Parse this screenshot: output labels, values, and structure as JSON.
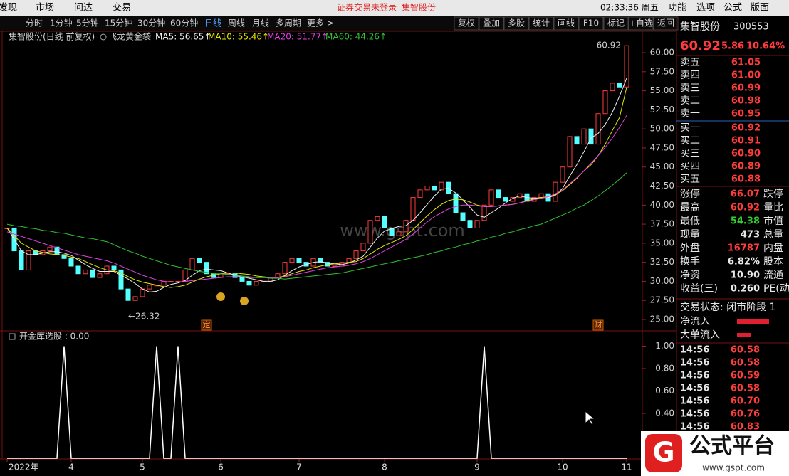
{
  "menu": {
    "left": [
      "发现",
      "市场",
      "问达",
      "交易"
    ],
    "notice": "证券交易未登录",
    "stock": "集智股份",
    "clock": "02:33:36 周五",
    "right": [
      "功能",
      "选项",
      "公式",
      "版面"
    ]
  },
  "toolbar": {
    "periods": [
      "分时",
      "1分钟",
      "5分钟",
      "15分钟",
      "30分钟",
      "60分钟",
      "日线",
      "周线",
      "月线",
      "多周期",
      "更多 >"
    ],
    "active": 6,
    "tools": [
      "复权",
      "叠加",
      "多股",
      "统计",
      "画线",
      "F10",
      "标记",
      "+自选",
      "返回"
    ]
  },
  "chart_data": [
    {
      "type": "candlestick",
      "title": "集智股份(日线 前复权)",
      "indicator": "飞龙黄金袋",
      "up_color": "#ff3c3c",
      "down_color": "#54ffff",
      "close": [
        37,
        34,
        31.5,
        34,
        33.5,
        34,
        34.5,
        33.5,
        33,
        32,
        31,
        31.5,
        30.5,
        31,
        32,
        31.5,
        29,
        27.5,
        28,
        29,
        29.5,
        29.5,
        30,
        30,
        30,
        31.5,
        33,
        32.5,
        31,
        30.5,
        31,
        31,
        30.5,
        30,
        29.5,
        30,
        30,
        30.5,
        31,
        32.5,
        33,
        32.5,
        32,
        33,
        32.5,
        32,
        32,
        32.5,
        33,
        34,
        35,
        38,
        38.5,
        37,
        36,
        36.5,
        38,
        41,
        42,
        42.5,
        42,
        43,
        41.5,
        39,
        38,
        37,
        38,
        40,
        42,
        41,
        40.5,
        41,
        41.5,
        40.5,
        41,
        41.5,
        40.5,
        43,
        45,
        49,
        48,
        50,
        48,
        52,
        55,
        56,
        55.5,
        60.92
      ],
      "series": [
        {
          "name": "MA5: 56.65↑",
          "color": "#f0f0f0",
          "values": [
            37,
            35.5,
            34,
            33.5,
            33.5,
            33.7,
            33.9,
            33.9,
            33.7,
            33.4,
            32.8,
            32.2,
            31.7,
            31.3,
            31.3,
            31.3,
            30.8,
            30.3,
            29.7,
            29.0,
            28.6,
            28.7,
            29.2,
            29.6,
            29.8,
            30.1,
            30.8,
            31.4,
            31.6,
            31.5,
            31.4,
            31.1,
            30.8,
            30.6,
            30.4,
            30.2,
            30.0,
            30.0,
            30.2,
            30.8,
            31.4,
            31.9,
            32.2,
            32.5,
            32.6,
            32.4,
            32.3,
            32.2,
            32.4,
            32.8,
            33.3,
            34.5,
            35.7,
            36.6,
            36.9,
            37.2,
            37.3,
            38,
            39,
            40.1,
            41.2,
            42.1,
            42.2,
            41.6,
            40.7,
            39.7,
            38.7,
            38.4,
            39,
            39.6,
            40.3,
            40.9,
            41.2,
            41,
            40.9,
            41,
            41,
            41.3,
            42.2,
            43.8,
            45.3,
            47,
            48.8,
            49.4,
            50.6,
            52.2,
            54.3,
            56.65
          ]
        },
        {
          "name": "MA10: 55.46↑",
          "color": "#e6e600",
          "values": [
            37,
            36,
            35,
            34.5,
            34,
            33.8,
            33.6,
            33.5,
            33.4,
            33.2,
            33,
            32.6,
            32.2,
            31.8,
            31.5,
            31.4,
            31.1,
            30.6,
            30.2,
            29.9,
            29.7,
            29.5,
            29.3,
            29.2,
            29.3,
            29.5,
            29.9,
            30.3,
            30.6,
            30.8,
            31,
            31.1,
            31.1,
            31,
            30.9,
            30.7,
            30.6,
            30.5,
            30.5,
            30.7,
            31,
            31.3,
            31.5,
            31.8,
            32,
            32.2,
            32.3,
            32.4,
            32.5,
            32.6,
            33,
            33.6,
            34.2,
            34.7,
            35.1,
            35.5,
            36,
            36.8,
            37.7,
            38.6,
            39.4,
            40.1,
            40.6,
            40.8,
            40.7,
            40.4,
            40,
            39.8,
            39.8,
            39.9,
            40,
            40.1,
            40.3,
            40.6,
            40.8,
            41,
            41.1,
            41.4,
            41.9,
            42.7,
            43.5,
            44.5,
            45.3,
            46.5,
            48,
            49.8,
            51.5,
            55.46
          ]
        },
        {
          "name": "MA20: 51.77↑",
          "color": "#e040e0",
          "values": [
            36.5,
            36.2,
            35.9,
            35.6,
            35.3,
            35.0,
            34.7,
            34.4,
            34.1,
            33.8,
            33.5,
            33.3,
            33.1,
            32.9,
            32.7,
            32.4,
            32.0,
            31.6,
            31.2,
            30.8,
            30.5,
            30.2,
            30.0,
            29.9,
            29.9,
            30.0,
            30.1,
            30.2,
            30.3,
            30.4,
            30.5,
            30.6,
            30.6,
            30.6,
            30.5,
            30.5,
            30.5,
            30.5,
            30.5,
            30.6,
            30.8,
            31.0,
            31.2,
            31.4,
            31.6,
            31.8,
            31.9,
            32.0,
            32.1,
            32.3,
            32.6,
            33.0,
            33.5,
            34.0,
            34.5,
            35.0,
            35.5,
            36.2,
            37.0,
            37.8,
            38.5,
            39.0,
            39.5,
            39.8,
            40.0,
            40.0,
            39.9,
            39.8,
            39.8,
            39.9,
            40.0,
            40.1,
            40.3,
            40.5,
            40.7,
            40.9,
            41.1,
            41.5,
            42.0,
            42.8,
            43.6,
            44.5,
            45.5,
            46.5,
            47.6,
            48.8,
            50.2,
            51.77
          ]
        },
        {
          "name": "MA60: 44.26↑",
          "color": "#30c030",
          "values": [
            37.5,
            37.3,
            37.2,
            37.0,
            36.9,
            36.7,
            36.6,
            36.4,
            36.3,
            36.1,
            35.9,
            35.7,
            35.6,
            35.4,
            35.2,
            34.8,
            34.4,
            34.0,
            33.7,
            33.3,
            33.0,
            32.7,
            32.4,
            32.1,
            31.9,
            31.7,
            31.5,
            31.3,
            31.2,
            31.0,
            31.0,
            30.9,
            30.8,
            30.7,
            30.6,
            30.5,
            30.5,
            30.4,
            30.4,
            30.3,
            30.4,
            30.5,
            30.6,
            30.7,
            30.8,
            30.9,
            31.0,
            31.1,
            31.3,
            31.5,
            31.7,
            31.9,
            32.1,
            32.3,
            32.5,
            32.7,
            32.9,
            33.1,
            33.3,
            33.5,
            33.8,
            34.0,
            34.3,
            34.5,
            34.8,
            35.0,
            35.3,
            35.5,
            35.8,
            36.0,
            36.3,
            36.5,
            36.8,
            37.0,
            37.3,
            37.5,
            37.9,
            38.3,
            38.7,
            39.1,
            39.6,
            40.0,
            40.6,
            41.2,
            41.9,
            42.6,
            43.4,
            44.26
          ]
        }
      ],
      "xlim": [
        -0.5,
        88.8
      ],
      "ylim": [
        23.6,
        62.71
      ],
      "yticks": [
        {
          "value": 25,
          "label": "25.00"
        },
        {
          "value": 27.5,
          "label": "27.50"
        },
        {
          "value": 30,
          "label": "30.00"
        },
        {
          "value": 32.5,
          "label": "32.50"
        },
        {
          "value": 35,
          "label": "35.00"
        },
        {
          "value": 37.5,
          "label": "37.50"
        },
        {
          "value": 40,
          "label": "40.00"
        },
        {
          "value": 42.5,
          "label": "42.50"
        },
        {
          "value": 45,
          "label": "45.00"
        },
        {
          "value": 47.5,
          "label": "47.50"
        },
        {
          "value": 50,
          "label": "50.00"
        },
        {
          "value": 52.5,
          "label": "52.50"
        },
        {
          "value": 55,
          "label": "55.00"
        },
        {
          "value": 57.5,
          "label": "57.50"
        },
        {
          "value": 60,
          "label": "60.00"
        }
      ],
      "xticks": [
        {
          "value": 0,
          "label": "2022年"
        },
        {
          "value": 9,
          "label": "4"
        },
        {
          "value": 19,
          "label": "5"
        },
        {
          "value": 30,
          "label": "6"
        },
        {
          "value": 41,
          "label": "7"
        },
        {
          "value": 53,
          "label": "8"
        },
        {
          "value": 66,
          "label": "9"
        },
        {
          "value": 78,
          "label": "10"
        },
        {
          "value": 87,
          "label": "11"
        }
      ],
      "annotations": [
        {
          "text": "60.92",
          "x": 87,
          "y": 60.92
        },
        {
          "text": "←26.32",
          "x": 17,
          "y": 26.32
        }
      ],
      "events": [
        {
          "label": "定",
          "x": 28
        },
        {
          "label": "财",
          "x": 83
        }
      ],
      "watermark": "www.gspt.com"
    },
    {
      "type": "line",
      "title": "开金库选股 : 0.00",
      "color": "#ffffff",
      "xlim": [
        -0.5,
        88.8
      ],
      "ylim": [
        0,
        1.13
      ],
      "yticks": [
        {
          "value": 1,
          "label": "1.00"
        },
        {
          "value": 0.8,
          "label": "0.80"
        },
        {
          "value": 0.6,
          "label": "0.60"
        },
        {
          "value": 0.4,
          "label": "0.40"
        }
      ],
      "values": [
        0,
        0,
        0,
        0,
        0,
        0,
        0,
        0,
        1,
        0,
        0,
        0,
        0,
        0,
        0,
        0,
        0,
        0,
        0,
        0,
        0,
        1,
        0,
        0,
        1,
        0,
        0,
        0,
        0,
        0,
        0,
        0,
        0,
        0,
        0,
        0,
        0,
        0,
        0,
        0,
        0,
        0,
        0,
        0,
        0,
        0,
        0,
        0,
        0,
        0,
        0,
        0,
        0,
        0,
        0,
        0,
        0,
        0,
        0,
        0,
        0,
        0,
        0,
        0,
        0,
        0,
        0,
        1,
        0,
        0,
        0,
        0,
        0,
        0,
        0,
        0,
        0,
        0,
        0,
        0,
        0,
        0,
        0,
        0,
        0,
        0,
        0,
        0
      ]
    }
  ],
  "quote": {
    "name": "集智股份",
    "code": "300553",
    "price": "60.92",
    "change": "5.86",
    "pct": "10.64%",
    "book": [
      {
        "label": "卖五",
        "price": "61.05"
      },
      {
        "label": "卖四",
        "price": "61.00"
      },
      {
        "label": "卖三",
        "price": "60.99"
      },
      {
        "label": "卖二",
        "price": "60.98"
      },
      {
        "label": "卖一",
        "price": "60.95"
      },
      {
        "label": "买一",
        "price": "60.92"
      },
      {
        "label": "买二",
        "price": "60.91"
      },
      {
        "label": "买三",
        "price": "60.90"
      },
      {
        "label": "买四",
        "price": "60.89"
      },
      {
        "label": "买五",
        "price": "60.88"
      }
    ],
    "stats": [
      [
        "涨停",
        "66.07",
        "跌停"
      ],
      [
        "最高",
        "60.92",
        "量比"
      ],
      [
        "最低",
        "54.38",
        "市值"
      ],
      [
        "现量",
        "473",
        "总量"
      ],
      [
        "外盘",
        "16787",
        "内盘"
      ],
      [
        "换手",
        "6.82%",
        "股本"
      ],
      [
        "净资",
        "10.90",
        "流通"
      ],
      [
        "收益(三)",
        "0.260",
        "PE(动"
      ]
    ],
    "status": "交易状态: 闭市阶段 1",
    "flows": [
      "净流入",
      "大单流入"
    ],
    "ticks": [
      [
        "14:56",
        "60.58"
      ],
      [
        "14:56",
        "60.58"
      ],
      [
        "14:56",
        "60.59"
      ],
      [
        "14:56",
        "60.58"
      ],
      [
        "14:56",
        "60.70"
      ],
      [
        "14:56",
        "60.76"
      ],
      [
        "14:56",
        "60.83"
      ]
    ]
  },
  "logo": {
    "name": "公式平台",
    "url": "www.gspt.com"
  }
}
